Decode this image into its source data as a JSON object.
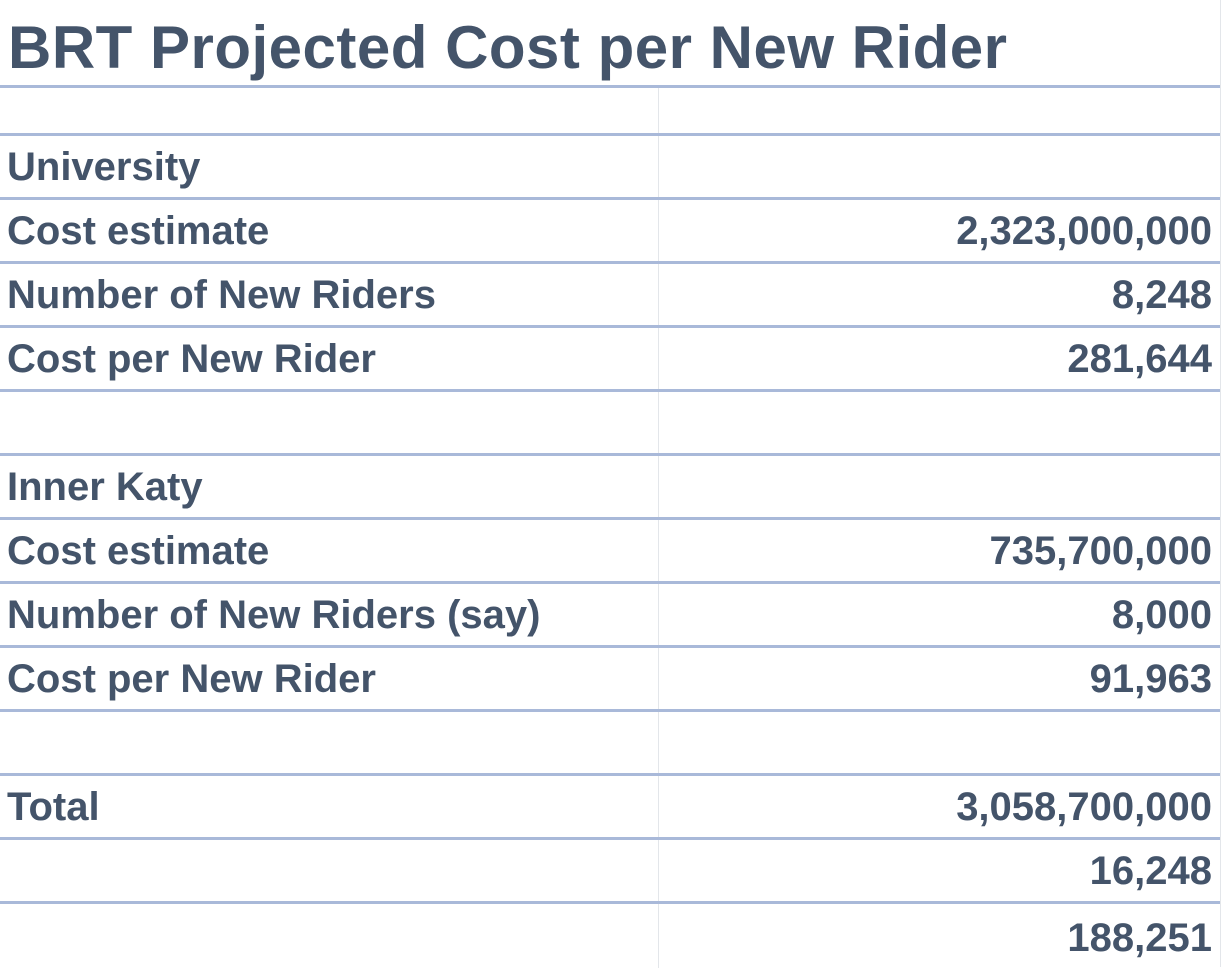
{
  "sheet": {
    "title": "BRT Projected Cost per New Rider"
  },
  "rows": [
    {
      "label": "",
      "value": ""
    },
    {
      "label": "University",
      "value": ""
    },
    {
      "label": "Cost estimate",
      "value": "2,323,000,000"
    },
    {
      "label": "Number of New Riders",
      "value": "8,248"
    },
    {
      "label": "Cost per New Rider",
      "value": "281,644"
    },
    {
      "label": "",
      "value": ""
    },
    {
      "label": "Inner Katy",
      "value": ""
    },
    {
      "label": "Cost estimate",
      "value": "735,700,000"
    },
    {
      "label": "Number of New Riders (say)",
      "value": "8,000"
    },
    {
      "label": "Cost per New Rider",
      "value": "91,963"
    },
    {
      "label": "",
      "value": ""
    },
    {
      "label": "Total",
      "value": "3,058,700,000"
    },
    {
      "label": "",
      "value": "16,248"
    },
    {
      "label": "",
      "value": "188,251"
    }
  ],
  "colors": {
    "text": "#44546a",
    "gridline": "#a9b9d9"
  }
}
